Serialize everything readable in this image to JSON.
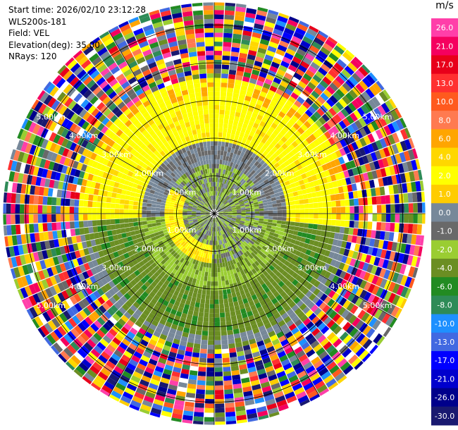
{
  "header": {
    "start_time": "Start time: 2026/02/10 23:12:28",
    "instrument": "WLS200s-181",
    "field": "Field: VEL",
    "elevation": "Elevation(deg): 35.00",
    "nrays": "NRays: 120"
  },
  "colorbar": {
    "unit": "m/s",
    "levels": [
      {
        "label": "26.0",
        "color": "#ff3fa9"
      },
      {
        "label": "21.0",
        "color": "#f5005f"
      },
      {
        "label": "17.0",
        "color": "#e8001a"
      },
      {
        "label": "13.0",
        "color": "#ff3030"
      },
      {
        "label": "10.0",
        "color": "#ff5a1e"
      },
      {
        "label": "8.0",
        "color": "#ff7a50"
      },
      {
        "label": "6.0",
        "color": "#ffa500"
      },
      {
        "label": "4.0",
        "color": "#ffd700"
      },
      {
        "label": "2.0",
        "color": "#ffff00"
      },
      {
        "label": "1.0",
        "color": "#ffcc00"
      },
      {
        "label": "0.0",
        "color": "#778899"
      },
      {
        "label": "-1.0",
        "color": "#696969"
      },
      {
        "label": "-2.0",
        "color": "#9acd32"
      },
      {
        "label": "-4.0",
        "color": "#6b8e23"
      },
      {
        "label": "-6.0",
        "color": "#228b22"
      },
      {
        "label": "-8.0",
        "color": "#2e8b57"
      },
      {
        "label": "-10.0",
        "color": "#1e90ff"
      },
      {
        "label": "-13.0",
        "color": "#4169e1"
      },
      {
        "label": "-17.0",
        "color": "#0000ff"
      },
      {
        "label": "-21.0",
        "color": "#0000cd"
      },
      {
        "label": "-26.0",
        "color": "#00008b"
      },
      {
        "label": "-30.0",
        "color": "#191970"
      }
    ]
  },
  "chart_data": {
    "type": "heatmap",
    "projection": "polar PPI",
    "field": "VEL",
    "nrays": 120,
    "elevation_deg": 35.0,
    "range_ring_labels": [
      "1.00km",
      "2.00km",
      "3.00km",
      "4.00km",
      "5.00km"
    ],
    "rings_km": [
      1,
      2,
      3,
      4,
      5
    ],
    "max_range_km": 5.6,
    "grid": true
  }
}
